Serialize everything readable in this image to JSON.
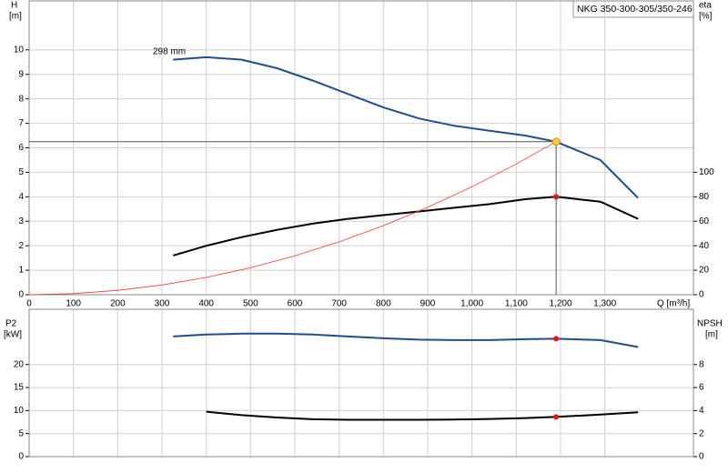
{
  "chart_data": [
    {
      "type": "line",
      "title": "NKG 350-300-305/350-246",
      "annotation": "298 mm",
      "ylabel": [
        "H",
        "[m]"
      ],
      "y2label": [
        "eta",
        "[%]"
      ],
      "xlabel": "Q [m³/h]",
      "xlim": [
        0,
        1500
      ],
      "xticks": [
        0,
        100,
        200,
        300,
        400,
        500,
        600,
        700,
        800,
        900,
        {
          "value": 1000,
          "label": "1,000"
        },
        {
          "value": 1100,
          "label": "1,100"
        },
        {
          "value": 1200,
          "label": "1,200"
        },
        {
          "value": 1300,
          "label": "1,300"
        }
      ],
      "ylim": [
        0,
        12
      ],
      "yticks": [
        0,
        1,
        2,
        3,
        4,
        5,
        6,
        7,
        8,
        9,
        10
      ],
      "y2lim": [
        0,
        240
      ],
      "y2ticks": [
        0,
        20,
        40,
        60,
        80,
        100
      ],
      "grid": true,
      "series": [
        {
          "color": "#1f4e8c",
          "x": [
            325,
            400,
            480,
            560,
            640,
            720,
            800,
            880,
            960,
            1040,
            1120,
            1190,
            1290,
            1375
          ],
          "values": [
            9.6,
            9.7,
            9.6,
            9.25,
            8.75,
            8.2,
            7.65,
            7.2,
            6.9,
            6.7,
            6.5,
            6.25,
            5.5,
            3.95
          ]
        },
        {
          "color": "#000000",
          "axis": "y2",
          "x": [
            325,
            400,
            480,
            560,
            640,
            720,
            800,
            880,
            960,
            1040,
            1120,
            1190,
            1290,
            1375
          ],
          "values": [
            32,
            40,
            47,
            53,
            58,
            62,
            65,
            68,
            71,
            74,
            78,
            80,
            76,
            62
          ]
        },
        {
          "color": "#ff3333",
          "thin": true,
          "x": [
            0,
            100,
            200,
            300,
            400,
            500,
            600,
            700,
            800,
            900,
            1000,
            1100,
            1190
          ],
          "values": [
            0,
            0.044,
            0.177,
            0.397,
            0.706,
            1.1,
            1.59,
            2.16,
            2.82,
            3.57,
            4.41,
            5.34,
            6.25
          ]
        },
        {
          "color": "#ffcc33",
          "marker": "duty",
          "x": [
            1190
          ],
          "values": [
            6.25
          ]
        },
        {
          "color": "#ee1111",
          "marker": "dot",
          "axis": "y2",
          "x": [
            1190
          ],
          "values": [
            80
          ]
        }
      ]
    },
    {
      "type": "line",
      "ylabel": [
        "P2",
        "[kW]"
      ],
      "y2label": [
        "NPSH",
        "[m]"
      ],
      "xlim": [
        0,
        1500
      ],
      "ylim": [
        0,
        32
      ],
      "yticks": [
        0,
        5,
        10,
        15,
        20
      ],
      "y2lim": [
        0,
        12.8
      ],
      "y2ticks": [
        0,
        2,
        4,
        6,
        8
      ],
      "grid": true,
      "series": [
        {
          "color": "#1f4e8c",
          "x": [
            325,
            400,
            480,
            560,
            640,
            720,
            800,
            880,
            960,
            1040,
            1120,
            1190,
            1290,
            1375
          ],
          "values": [
            26.1,
            26.5,
            26.7,
            26.7,
            26.5,
            26.1,
            25.7,
            25.4,
            25.3,
            25.3,
            25.5,
            25.6,
            25.3,
            23.8
          ]
        },
        {
          "color": "#000000",
          "axis": "y2",
          "x": [
            400,
            480,
            560,
            640,
            720,
            800,
            880,
            960,
            1040,
            1120,
            1190,
            1290,
            1375
          ],
          "values": [
            3.9,
            3.6,
            3.4,
            3.25,
            3.2,
            3.2,
            3.2,
            3.22,
            3.27,
            3.35,
            3.45,
            3.65,
            3.85
          ]
        },
        {
          "color": "#ee1111",
          "marker": "dot",
          "x": [
            1190
          ],
          "values": [
            25.6
          ]
        },
        {
          "color": "#ee1111",
          "marker": "dot",
          "axis": "y2",
          "x": [
            1190
          ],
          "values": [
            3.45
          ]
        }
      ]
    }
  ]
}
